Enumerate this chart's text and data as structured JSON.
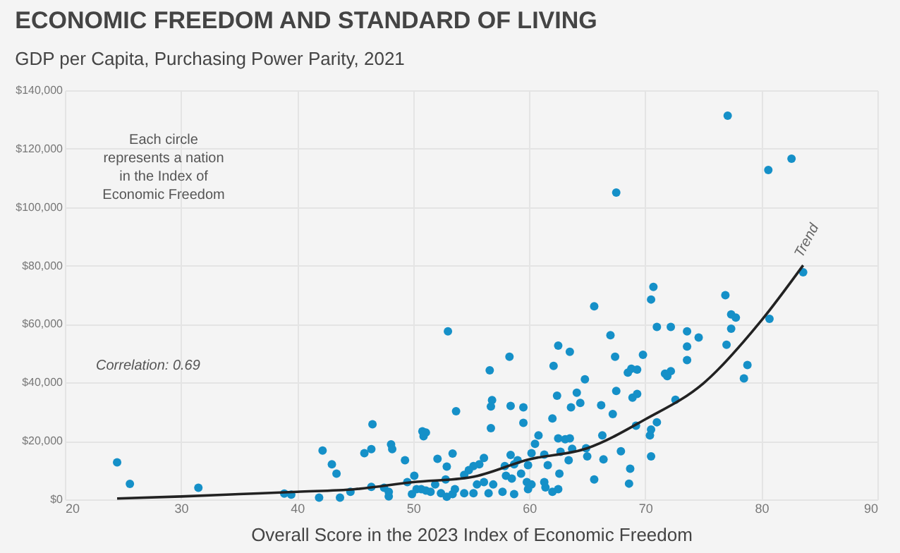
{
  "chart_data": {
    "type": "scatter",
    "title": "ECONOMIC FREEDOM AND STANDARD OF LIVING",
    "subtitle": "GDP per Capita, Purchasing Power Parity, 2021",
    "xlabel": "Overall Score in the 2023 Index of Economic Freedom",
    "xlim": [
      20,
      90
    ],
    "xticks": [
      20,
      30,
      40,
      50,
      60,
      70,
      80,
      90
    ],
    "ylim": [
      0,
      140000
    ],
    "yticks": [
      {
        "value": 0,
        "label": "$0"
      },
      {
        "value": 20000,
        "label": "$20,000"
      },
      {
        "value": 40000,
        "label": "$40,000"
      },
      {
        "value": 60000,
        "label": "$60,000"
      },
      {
        "value": 80000,
        "label": "$80,000"
      },
      {
        "value": 100000,
        "label": "$100,000"
      },
      {
        "value": 120000,
        "label": "$120,000"
      },
      {
        "value": 140000,
        "label": "$140,000"
      }
    ],
    "grid": true,
    "series": [
      {
        "marker": "circle",
        "color": "#1590c8",
        "x": [
          77.1,
          80.6,
          82.6,
          67.5,
          83.6,
          80.7,
          76.9,
          77.4,
          77.8,
          77.4,
          77.0,
          78.8,
          78.5,
          70.7,
          70.5,
          65.6,
          71.0,
          72.2,
          73.6,
          74.6,
          73.6,
          73.6,
          67.0,
          62.5,
          63.5,
          67.4,
          69.8,
          62.1,
          68.5,
          68.8,
          69.3,
          71.7,
          72.2,
          71.9,
          64.8,
          62.4,
          64.1,
          67.5,
          68.9,
          69.3,
          72.6,
          64.4,
          63.6,
          66.2,
          67.2,
          62.0,
          69.2,
          71.0,
          70.5,
          70.4,
          66.3,
          62.5,
          63.1,
          63.5,
          60.5,
          60.8,
          59.5,
          59.5,
          58.4,
          58.3,
          56.6,
          56.8,
          56.7,
          56.7,
          53.7,
          53.0,
          64.9,
          65.0,
          63.7,
          62.7,
          63.4,
          61.3,
          61.6,
          62.6,
          61.4,
          62.0,
          62.5,
          66.4,
          67.9,
          65.6,
          68.7,
          68.6,
          70.5,
          60.2,
          59.9,
          59.0,
          58.4,
          57.9,
          58.7,
          58.0,
          58.5,
          59.3,
          59.8,
          60.2,
          59.9,
          58.7,
          57.7,
          61.3,
          56.1,
          55.7,
          55.2,
          54.8,
          54.4,
          53.4,
          52.1,
          52.9,
          51.1,
          50.9,
          55.5,
          56.1,
          56.9,
          56.5,
          55.2,
          54.4,
          53.6,
          52.8,
          51.9,
          51.5,
          50.7,
          52.4,
          53.4,
          24.5,
          25.6,
          31.5,
          38.9,
          39.5,
          41.9,
          42.2,
          43.0,
          43.4,
          43.7,
          44.6,
          45.8,
          46.4,
          46.5,
          46.4,
          47.5,
          48.1,
          48.2,
          47.9,
          47.9,
          49.3,
          49.5,
          50.1,
          49.9,
          50.3,
          50.8,
          51.1,
          52.9
        ],
        "values": [
          131300,
          112700,
          116600,
          105000,
          77700,
          61800,
          69900,
          63300,
          62200,
          58400,
          52900,
          46000,
          41400,
          72700,
          68400,
          66100,
          59000,
          59000,
          57500,
          55400,
          52300,
          47700,
          56200,
          52600,
          50500,
          48800,
          49500,
          45700,
          43400,
          44700,
          44400,
          43000,
          43900,
          42200,
          41100,
          35500,
          36500,
          37100,
          34800,
          36100,
          34100,
          33000,
          31500,
          32200,
          29200,
          27700,
          25200,
          26400,
          23900,
          21900,
          21900,
          20900,
          20600,
          20900,
          19000,
          21900,
          26200,
          31500,
          32000,
          48800,
          44200,
          34000,
          31800,
          24400,
          30200,
          57500,
          17500,
          14700,
          17300,
          16300,
          13400,
          15300,
          11700,
          8800,
          4100,
          2600,
          3500,
          13700,
          16500,
          6800,
          10500,
          5400,
          14700,
          15800,
          11700,
          13400,
          15200,
          11400,
          12000,
          8100,
          7100,
          8800,
          5900,
          5100,
          3500,
          1800,
          2600,
          5900,
          14200,
          12000,
          11400,
          10000,
          8400,
          15700,
          13900,
          11200,
          22900,
          21600,
          5100,
          5900,
          5100,
          2100,
          2100,
          2100,
          3500,
          6800,
          5100,
          2600,
          3500,
          2100,
          1800,
          12700,
          5300,
          4000,
          2000,
          1600,
          600,
          16700,
          12000,
          8800,
          600,
          2600,
          15800,
          17200,
          25700,
          4300,
          4000,
          18800,
          17200,
          2600,
          1000,
          13400,
          5900,
          8100,
          1800,
          3500,
          23300,
          3000,
          900
        ]
      },
      {
        "type": "line",
        "color": "#222222",
        "x": [
          24.5,
          30,
          35,
          40,
          45,
          50,
          55,
          60,
          65,
          70,
          75,
          80,
          83.6
        ],
        "values": [
          300,
          1000,
          1800,
          2600,
          3500,
          5900,
          7600,
          13700,
          17500,
          27400,
          39700,
          61200,
          80100
        ]
      }
    ],
    "annotations": [
      "Each circle represents a nation in the Index of Economic Freedom",
      "Correlation: 0.69",
      {
        "text": "Trend",
        "x": 83.6,
        "y": 80100
      }
    ]
  }
}
